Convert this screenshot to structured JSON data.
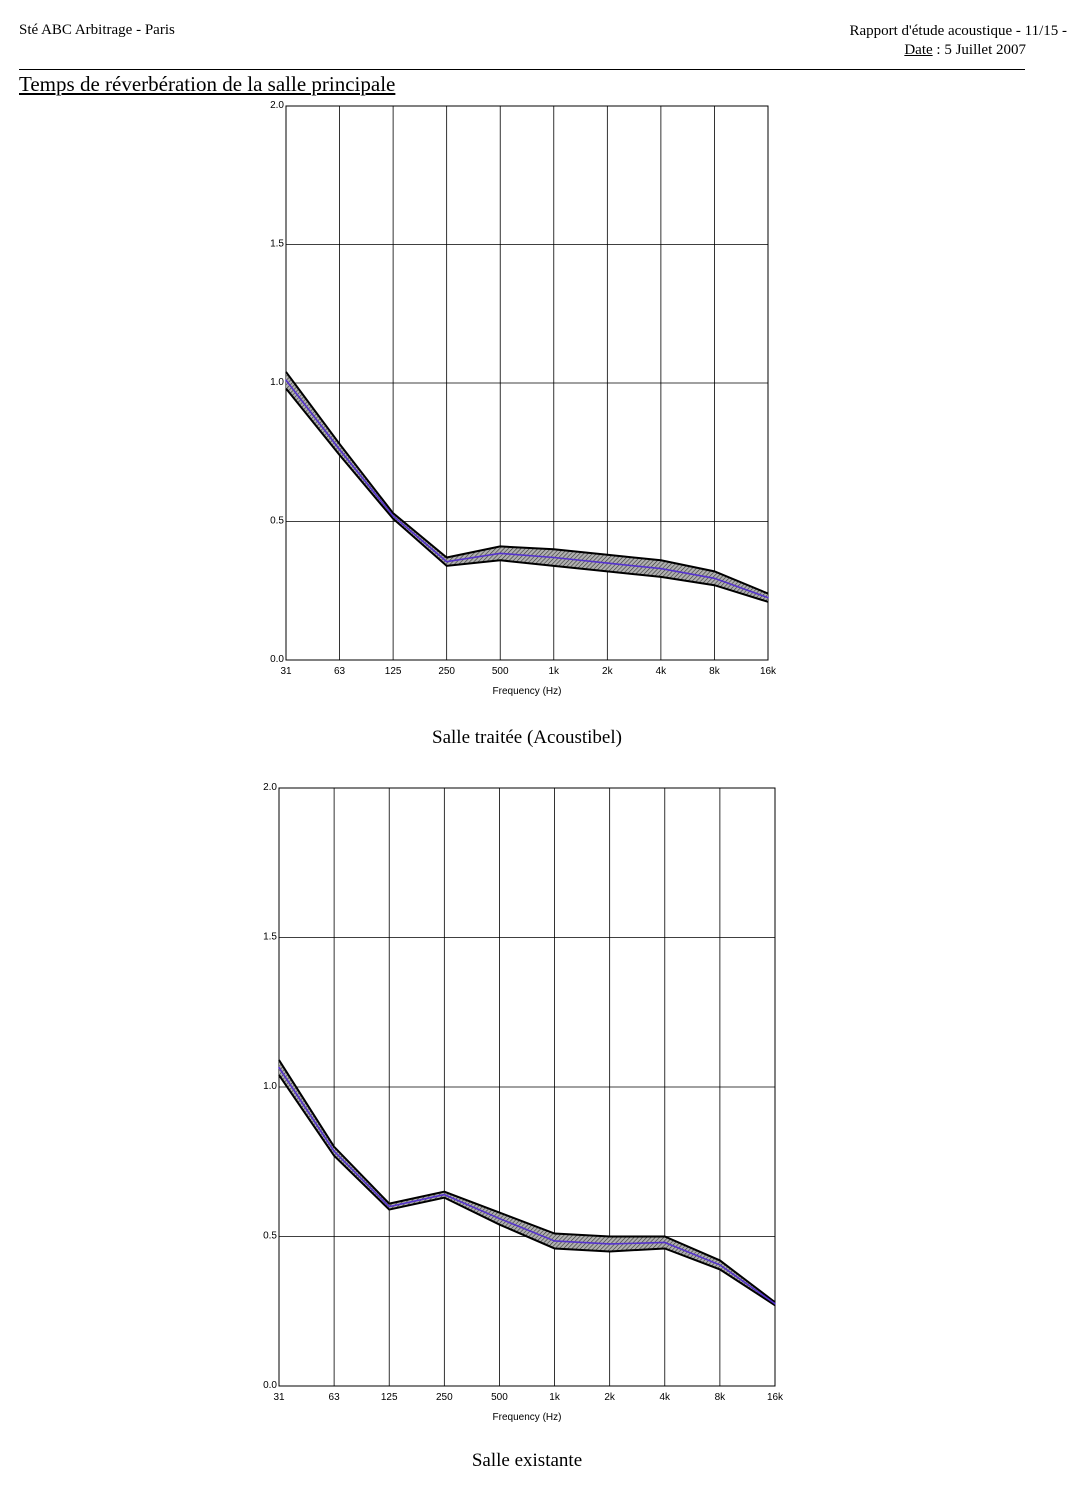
{
  "header": {
    "left": "Sté ABC Arbitrage - Paris",
    "right_line1": "Rapport d'étude acoustique - 11/15 -",
    "date_label": "Date",
    "date_value": " : 5 Juillet 2007"
  },
  "section_title": "Temps de réverbération de la salle principale",
  "chart_data": [
    {
      "type": "area",
      "caption": "Salle traitée (Acoustibel)",
      "xlabel": "Frequency (Hz)",
      "ylabel": "",
      "categories": [
        "31",
        "63",
        "125",
        "250",
        "500",
        "1k",
        "2k",
        "4k",
        "8k",
        "16k"
      ],
      "yticks": [
        "0.0",
        "0.5",
        "1.0",
        "1.5",
        "2.0"
      ],
      "ylim": [
        0,
        2.0
      ],
      "grid": true,
      "band": {
        "upper": [
          1.04,
          0.78,
          0.53,
          0.37,
          0.41,
          0.4,
          0.38,
          0.36,
          0.32,
          0.24
        ],
        "lower": [
          0.98,
          0.74,
          0.51,
          0.34,
          0.36,
          0.34,
          0.32,
          0.3,
          0.27,
          0.21
        ]
      },
      "series": [
        {
          "values": [
            1.01,
            0.76,
            0.52,
            0.355,
            0.385,
            0.37,
            0.35,
            0.33,
            0.295,
            0.225
          ]
        }
      ],
      "colors": {
        "band": "#8a8a8a",
        "band_edge": "#000000",
        "line": "#5533cc"
      }
    },
    {
      "type": "area",
      "caption": "Salle existante",
      "xlabel": "Frequency (Hz)",
      "ylabel": "",
      "categories": [
        "31",
        "63",
        "125",
        "250",
        "500",
        "1k",
        "2k",
        "4k",
        "8k",
        "16k"
      ],
      "yticks": [
        "0.0",
        "0.5",
        "1.0",
        "1.5",
        "2.0"
      ],
      "ylim": [
        0,
        2.0
      ],
      "grid": true,
      "band": {
        "upper": [
          1.09,
          0.8,
          0.61,
          0.65,
          0.58,
          0.51,
          0.5,
          0.5,
          0.42,
          0.28
        ],
        "lower": [
          1.04,
          0.77,
          0.59,
          0.63,
          0.54,
          0.46,
          0.45,
          0.46,
          0.39,
          0.27
        ]
      },
      "series": [
        {
          "values": [
            1.065,
            0.785,
            0.6,
            0.64,
            0.56,
            0.485,
            0.475,
            0.48,
            0.405,
            0.275
          ]
        }
      ],
      "colors": {
        "band": "#8a8a8a",
        "band_edge": "#000000",
        "line": "#5533cc"
      }
    }
  ]
}
